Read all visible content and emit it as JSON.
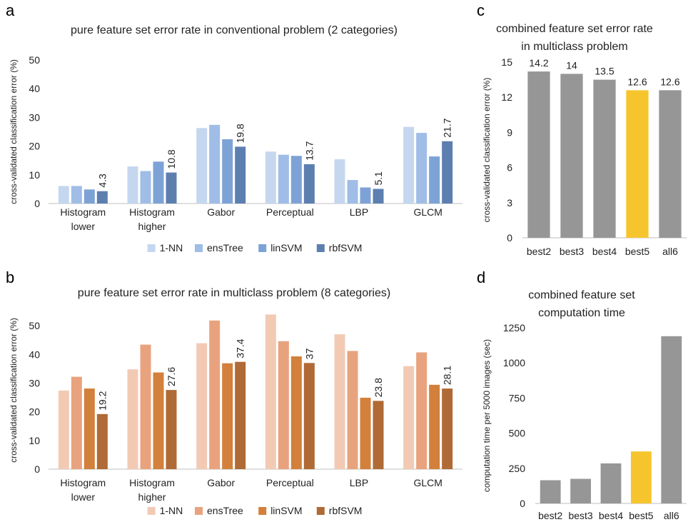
{
  "panel_letters": {
    "a": "a",
    "b": "b",
    "c": "c",
    "d": "d"
  },
  "colors": {
    "axis_line": "#bfbfbf",
    "text": "#222222",
    "blues": [
      "#c5d7ef",
      "#9fbde6",
      "#7da3d6",
      "#5d7fb0"
    ],
    "oranges": [
      "#f2cab4",
      "#e8a37e",
      "#d2803b",
      "#b06a35"
    ],
    "gray": "#969696",
    "highlight": "#f6c52e"
  },
  "chart_data": [
    {
      "id": "a",
      "type": "bar",
      "title": "pure feature set error rate in conventional problem (2 categories)",
      "ylabel": "cross-validated classification error (%)",
      "xlabel": "",
      "ylim": [
        0,
        50
      ],
      "yticks": [
        0,
        10,
        20,
        30,
        40,
        50
      ],
      "categories": [
        [
          "Histogram",
          "lower"
        ],
        [
          "Histogram",
          "higher"
        ],
        [
          "Gabor"
        ],
        [
          "Perceptual"
        ],
        [
          "LBP"
        ],
        [
          "GLCM"
        ]
      ],
      "series": [
        {
          "name": "1-NN",
          "values": [
            6.1,
            12.9,
            26.3,
            18.1,
            15.4,
            26.7
          ]
        },
        {
          "name": "ensTree",
          "values": [
            6.1,
            11.3,
            27.4,
            17.0,
            8.2,
            24.6
          ]
        },
        {
          "name": "linSVM",
          "values": [
            4.9,
            14.6,
            22.4,
            16.6,
            5.6,
            16.4
          ]
        },
        {
          "name": "rbfSVM",
          "values": [
            4.3,
            10.8,
            19.8,
            13.7,
            5.1,
            21.7
          ]
        }
      ],
      "data_labels": [
        "4.3",
        "10.8",
        "19.8",
        "13.7",
        "5.1",
        "21.7"
      ],
      "legend": "bottom",
      "grid": false
    },
    {
      "id": "b",
      "type": "bar",
      "title": "pure feature set error rate in multiclass problem (8 categories)",
      "ylabel": "cross-validated classification error (%)",
      "xlabel": "",
      "ylim": [
        0,
        55
      ],
      "yticks": [
        0,
        10,
        20,
        30,
        40,
        50
      ],
      "categories": [
        [
          "Histogram",
          "lower"
        ],
        [
          "Histogram",
          "higher"
        ],
        [
          "Gabor"
        ],
        [
          "Perceptual"
        ],
        [
          "LBP"
        ],
        [
          "GLCM"
        ]
      ],
      "series": [
        {
          "name": "1-NN",
          "values": [
            27.4,
            34.8,
            43.9,
            53.9,
            47.0,
            35.9
          ]
        },
        {
          "name": "ensTree",
          "values": [
            32.2,
            43.4,
            51.8,
            44.6,
            41.2,
            40.7
          ]
        },
        {
          "name": "linSVM",
          "values": [
            28.1,
            33.7,
            36.9,
            39.3,
            24.9,
            29.4
          ]
        },
        {
          "name": "rbfSVM",
          "values": [
            19.2,
            27.6,
            37.4,
            37.0,
            23.8,
            28.1
          ]
        }
      ],
      "data_labels": [
        "19.2",
        "27.6",
        "37.4",
        "37",
        "23.8",
        "28.1"
      ],
      "legend": "bottom",
      "grid": false
    },
    {
      "id": "c",
      "type": "bar",
      "title": [
        "combined feature set error rate",
        "in multiclass problem"
      ],
      "ylabel": "cross-validated classification error (%)",
      "xlabel": "",
      "ylim": [
        0,
        15
      ],
      "yticks": [
        0,
        3,
        6,
        9,
        12,
        15
      ],
      "categories": [
        "best2",
        "best3",
        "best4",
        "best5",
        "all6"
      ],
      "values": [
        14.2,
        14.0,
        13.5,
        12.6,
        12.6
      ],
      "data_labels": [
        "14.2",
        "14",
        "13.5",
        "12.6",
        "12.6"
      ],
      "highlight_index": 3,
      "grid": false
    },
    {
      "id": "d",
      "type": "bar",
      "title": [
        "combined feature set",
        "computation time"
      ],
      "ylabel": "computation time per 5000 images (sec)",
      "xlabel": "",
      "ylim": [
        0,
        1250
      ],
      "yticks": [
        0,
        250,
        500,
        750,
        1000,
        1250
      ],
      "categories": [
        "best2",
        "best3",
        "best4",
        "best5",
        "all6"
      ],
      "values": [
        165,
        175,
        285,
        370,
        1190
      ],
      "highlight_index": 3,
      "grid": false
    }
  ]
}
